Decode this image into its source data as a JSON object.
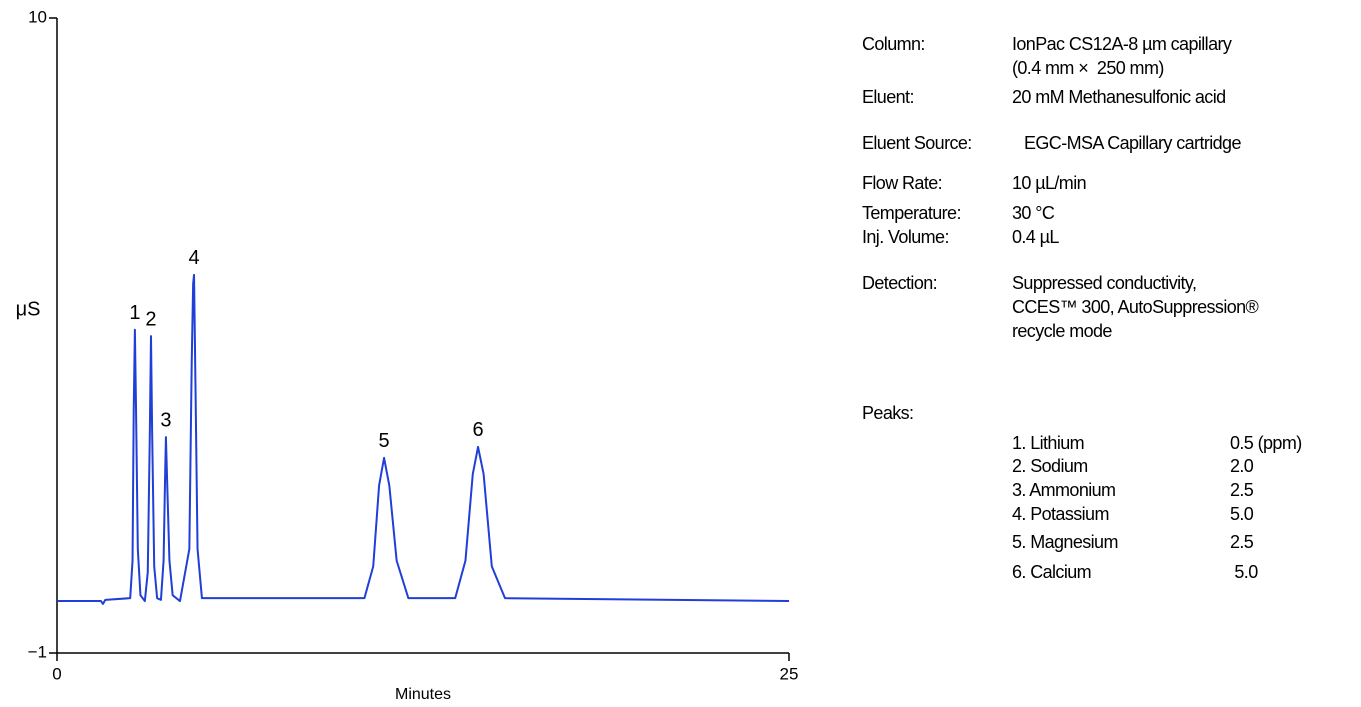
{
  "chart_data": {
    "type": "line",
    "ylabel": "μS",
    "xlabel": "Minutes",
    "color": "#1f3fd6",
    "xlim": [
      0,
      25
    ],
    "xticks": [
      0,
      25
    ],
    "ylim": [
      -1,
      10
    ],
    "yticks": [
      {
        "value": -1,
        "label": "−1"
      },
      10
    ],
    "annotations": [
      "1",
      "2",
      "3",
      "4",
      "5",
      "6"
    ],
    "x": [
      0,
      1.5,
      1.57,
      1.65,
      2.5,
      2.58,
      2.62,
      2.66,
      2.7,
      2.76,
      2.85,
      3.0,
      3.1,
      3.17,
      3.21,
      3.25,
      3.32,
      3.42,
      3.55,
      3.64,
      3.69,
      3.72,
      3.76,
      3.84,
      3.95,
      4.2,
      4.52,
      4.6,
      4.65,
      4.68,
      4.72,
      4.8,
      4.95,
      10.5,
      10.8,
      11.0,
      11.17,
      11.35,
      11.6,
      12.0,
      13.6,
      13.95,
      14.2,
      14.38,
      14.57,
      14.85,
      15.3,
      25
    ],
    "values": [
      -0.1,
      -0.1,
      -0.15,
      -0.08,
      -0.05,
      0.6,
      3.2,
      4.6,
      3.2,
      0.8,
      0.0,
      -0.1,
      0.4,
      2.8,
      4.49,
      2.8,
      0.5,
      -0.05,
      -0.08,
      0.6,
      2.0,
      2.74,
      2.0,
      0.6,
      0.0,
      -0.1,
      0.8,
      4.0,
      5.4,
      5.55,
      4.0,
      0.8,
      -0.05,
      -0.05,
      0.5,
      1.9,
      2.38,
      1.9,
      0.6,
      -0.05,
      -0.05,
      0.6,
      2.1,
      2.57,
      2.1,
      0.5,
      -0.05,
      -0.1
    ]
  },
  "conditions": [
    {
      "label": "Column:",
      "value": [
        "IonPac CS12A-8 µm capillary",
        "(0.4 mm ×  250 mm)"
      ]
    },
    {
      "label": "Eluent:",
      "value": [
        "20 mM Methanesulfonic acid"
      ]
    },
    {
      "label": "Eluent Source:",
      "value": [
        "EGC-MSA Capillary cartridge"
      ]
    },
    {
      "label": "Flow Rate:",
      "value": [
        "10 µL/min"
      ]
    },
    {
      "label": "Temperature:",
      "value": [
        "30 °C"
      ]
    },
    {
      "label": "Inj. Volume:",
      "value": [
        "0.4 µL"
      ]
    },
    {
      "label": "Detection:",
      "value": [
        "Suppressed conductivity,",
        "CCES™ 300, AutoSuppression®",
        "recycle mode"
      ]
    }
  ],
  "peaks": {
    "label": "Peaks:",
    "items": [
      [
        "1. Lithium",
        "0.5 (ppm)"
      ],
      [
        "2. Sodium",
        "2.0"
      ],
      [
        "3. Ammonium",
        "2.5"
      ],
      [
        "4. Potassium",
        "5.0"
      ],
      [
        "5. Magnesium",
        "2.5"
      ],
      [
        "6. Calcium",
        " 5.0"
      ]
    ]
  }
}
